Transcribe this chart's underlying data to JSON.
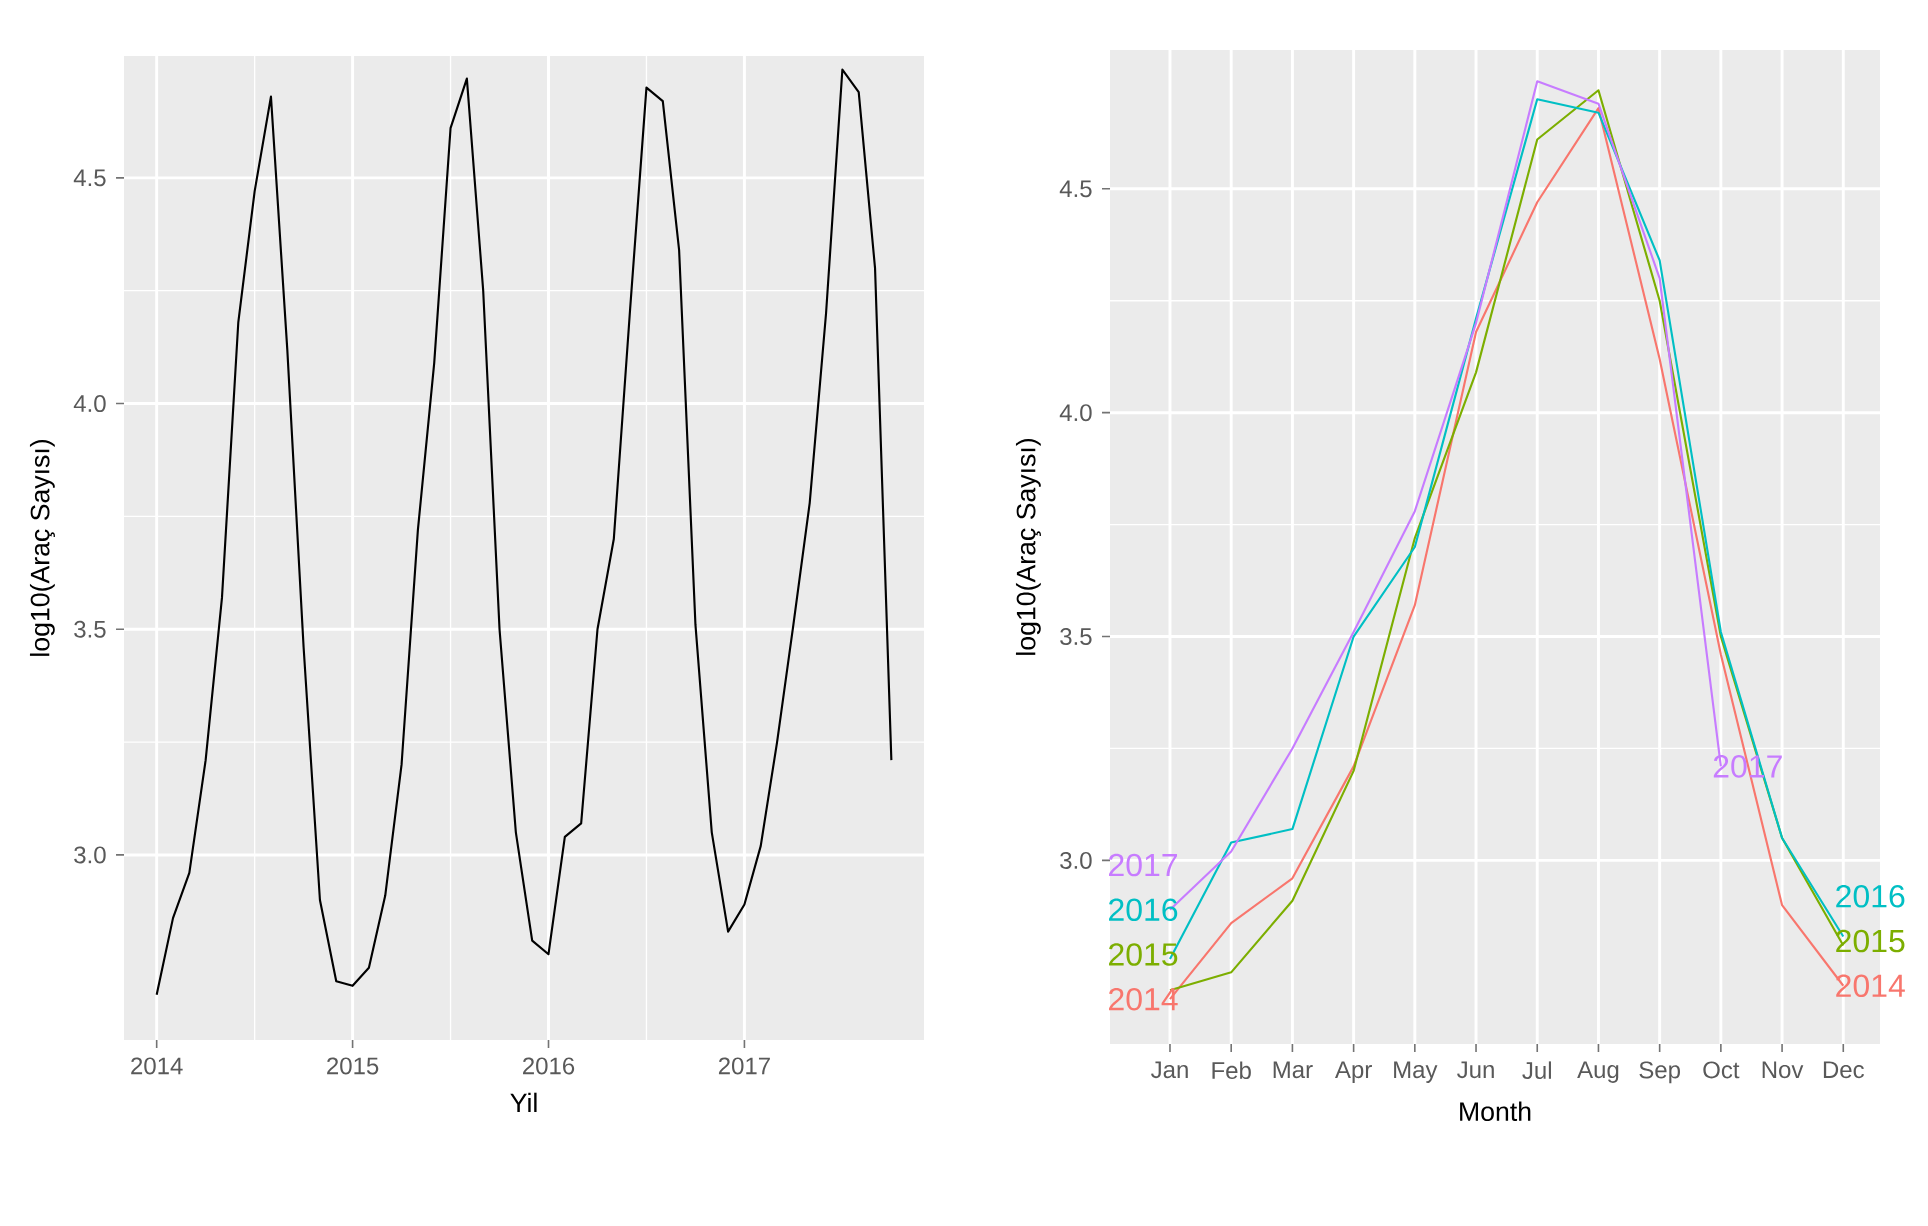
{
  "chart_data": [
    {
      "type": "line",
      "xlabel": "Yil",
      "ylabel": "log10(Araç Sayısı)",
      "x": [
        "2014-01",
        "2014-02",
        "2014-03",
        "2014-04",
        "2014-05",
        "2014-06",
        "2014-07",
        "2014-08",
        "2014-09",
        "2014-10",
        "2014-11",
        "2014-12",
        "2015-01",
        "2015-02",
        "2015-03",
        "2015-04",
        "2015-05",
        "2015-06",
        "2015-07",
        "2015-08",
        "2015-09",
        "2015-10",
        "2015-11",
        "2015-12",
        "2016-01",
        "2016-02",
        "2016-03",
        "2016-04",
        "2016-05",
        "2016-06",
        "2016-07",
        "2016-08",
        "2016-09",
        "2016-10",
        "2016-11",
        "2016-12",
        "2017-01",
        "2017-02",
        "2017-03",
        "2017-04",
        "2017-05",
        "2017-06",
        "2017-07",
        "2017-08",
        "2017-09",
        "2017-10"
      ],
      "series": [
        {
          "color": "#000000",
          "values": [
            2.69,
            2.86,
            2.96,
            3.21,
            3.57,
            4.18,
            4.47,
            4.68,
            4.12,
            3.46,
            2.9,
            2.72,
            2.71,
            2.75,
            2.91,
            3.2,
            3.72,
            4.09,
            4.61,
            4.72,
            4.25,
            3.5,
            3.05,
            2.81,
            2.78,
            3.04,
            3.07,
            3.5,
            3.7,
            4.21,
            4.7,
            4.67,
            4.34,
            3.51,
            3.05,
            2.83,
            2.89,
            3.02,
            3.25,
            3.51,
            3.78,
            4.2,
            4.74,
            4.69,
            4.3,
            3.21
          ]
        }
      ],
      "xlim": [
        "2013-11",
        "2017-12"
      ],
      "ylim": [
        2.59,
        4.77
      ],
      "xticks": [
        "2014",
        "2015",
        "2016",
        "2017"
      ],
      "yticks": [
        {
          "value": 3,
          "label": "3.0"
        },
        {
          "value": 3.5,
          "label": "3.5"
        },
        {
          "value": 4,
          "label": "4.0"
        },
        {
          "value": 4.5,
          "label": "4.5"
        }
      ],
      "grid": true
    },
    {
      "type": "line",
      "xlabel": "Month",
      "ylabel": "log10(Araç Sayısı)",
      "categories": [
        "Jan",
        "Feb",
        "Mar",
        "Apr",
        "May",
        "Jun",
        "Jul",
        "Aug",
        "Sep",
        "Oct",
        "Nov",
        "Dec"
      ],
      "series": [
        {
          "name": "2014",
          "color": "#F8766D",
          "values": [
            2.69,
            2.86,
            2.96,
            3.21,
            3.57,
            4.18,
            4.47,
            4.68,
            4.12,
            3.46,
            2.9,
            2.72
          ]
        },
        {
          "name": "2015",
          "color": "#7CAE00",
          "values": [
            2.71,
            2.75,
            2.91,
            3.2,
            3.72,
            4.09,
            4.61,
            4.72,
            4.25,
            3.5,
            3.05,
            2.81
          ]
        },
        {
          "name": "2016",
          "color": "#00BFC4",
          "values": [
            2.78,
            3.04,
            3.07,
            3.5,
            3.7,
            4.21,
            4.7,
            4.67,
            4.34,
            3.51,
            3.05,
            2.83
          ]
        },
        {
          "name": "2017",
          "color": "#C77CFF",
          "values": [
            2.89,
            3.02,
            3.25,
            3.51,
            3.78,
            4.2,
            4.74,
            4.69,
            4.3,
            3.21,
            null,
            null
          ]
        }
      ],
      "ylim": [
        2.59,
        4.81
      ],
      "yticks": [
        {
          "value": 3,
          "label": "3.0"
        },
        {
          "value": 3.5,
          "label": "3.5"
        },
        {
          "value": 4,
          "label": "4.0"
        },
        {
          "value": 4.5,
          "label": "4.5"
        }
      ],
      "grid": true
    }
  ]
}
